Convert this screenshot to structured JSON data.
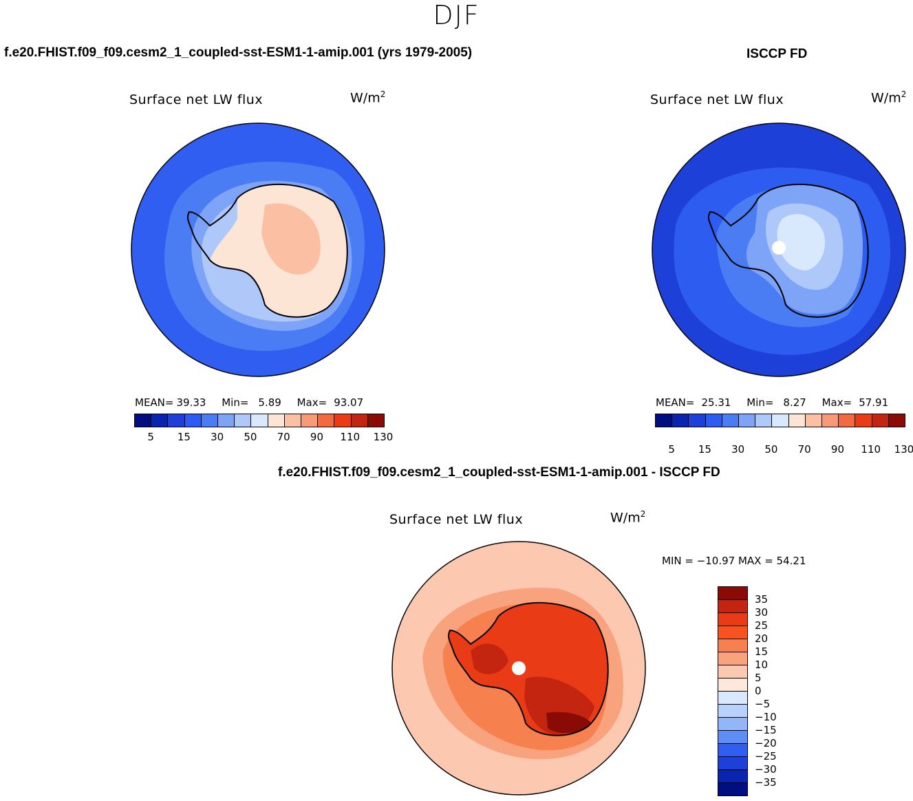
{
  "page_title": "DJF",
  "panels": {
    "model": {
      "case_title": "f.e20.FHIST.f09_f09.cesm2_1_coupled-sst-ESM1-1-amip.001 (yrs 1979-2005)",
      "variable": "Surface net LW flux",
      "units_base": "W/m",
      "units_exp": "2",
      "stats": {
        "mean_label": "MEAN=",
        "mean": "39.33",
        "min_label": "Min=",
        "min": "5.89",
        "max_label": "Max=",
        "max": "93.07"
      }
    },
    "obs": {
      "case_title": "ISCCP FD",
      "variable": "Surface net LW flux",
      "units_base": "W/m",
      "units_exp": "2",
      "stats": {
        "mean_label": "MEAN=",
        "mean": "25.31",
        "min_label": "Min=",
        "min": "8.27",
        "max_label": "Max=",
        "max": "57.91"
      }
    },
    "diff": {
      "case_title": "f.e20.FHIST.f09_f09.cesm2_1_coupled-sst-ESM1-1-amip.001 - ISCCP FD",
      "variable": "Surface net LW flux",
      "units_base": "W/m",
      "units_exp": "2",
      "range_text": "MIN = −10.97 MAX =  54.21"
    }
  },
  "field_colorbar": {
    "colors": [
      "#000e80",
      "#0a24b0",
      "#1c40d8",
      "#2d5cf0",
      "#4a7cf3",
      "#7ea4f7",
      "#aec8fa",
      "#d8e8fd",
      "#fde5d6",
      "#fbc0a4",
      "#f89a78",
      "#f46a40",
      "#e93c16",
      "#c42510",
      "#8a0a05"
    ],
    "tick_labels": [
      "5",
      "15",
      "30",
      "50",
      "70",
      "90",
      "110",
      "130"
    ]
  },
  "diff_colorbar": {
    "colors": [
      "#8a0a05",
      "#c42510",
      "#e93c16",
      "#f75220",
      "#f7804f",
      "#f9a27e",
      "#fcc8b0",
      "#fde8da",
      "#d8e8fd",
      "#b8d2fb",
      "#92b6f8",
      "#5e8ef5",
      "#2f5ef0",
      "#1c40d8",
      "#0a24b0",
      "#000e80"
    ],
    "tick_labels": [
      "35",
      "30",
      "25",
      "20",
      "15",
      "10",
      "5",
      "0",
      "−5",
      "−10",
      "−15",
      "−20",
      "−25",
      "−30",
      "−35"
    ]
  },
  "map_colors": {
    "model_ocean": "#2f5ef0",
    "model_ring": "#4a7cf3",
    "model_coast": "#7ea4f7",
    "model_shelf": "#aec8fa",
    "model_land": "#fde5d6",
    "model_interior": "#fbc0a4",
    "obs_ocean": "#1c40d8",
    "obs_mid": "#2d5cf0",
    "obs_coast": "#4a7cf3",
    "obs_land": "#7ea4f7",
    "obs_interior": "#aec8fa",
    "obs_core": "#d8e8fd",
    "diff_ocean": "#fcc8b0",
    "diff_mid": "#f9a27e",
    "diff_coast": "#f7804f",
    "diff_land": "#e93c16",
    "diff_high": "#c42510",
    "diff_peak": "#8a0a05"
  }
}
